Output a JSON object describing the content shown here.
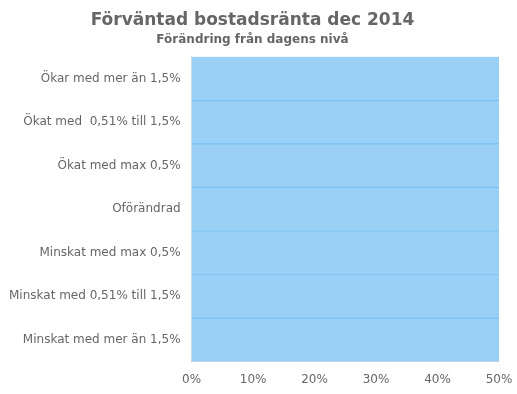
{
  "chart_data": {
    "type": "bar",
    "orientation": "horizontal",
    "title": "Förväntad bostadsränta dec 2014",
    "subtitle": "Förändring från dagens nivå",
    "categories": [
      "Ökar med mer än 1,5%",
      "Ökat med  0,51% till 1,5%",
      "Ökat med max 0,5%",
      "Oförändrad",
      "Minskat med max 0,5%",
      "Minskat med 0,51% till 1,5%",
      "Minskat med mer än 1,5%"
    ],
    "values": [
      0.5,
      0.5,
      0.5,
      0.5,
      0.5,
      0.5,
      0.5
    ],
    "xlim": [
      0,
      0.5
    ],
    "xticks": [
      {
        "value": 0,
        "label": "0%"
      },
      {
        "value": 0.1,
        "label": "10%"
      },
      {
        "value": 0.2,
        "label": "20%"
      },
      {
        "value": 0.3,
        "label": "30%"
      },
      {
        "value": 0.4,
        "label": "40%"
      },
      {
        "value": 0.5,
        "label": "50%"
      }
    ],
    "grid": false
  }
}
